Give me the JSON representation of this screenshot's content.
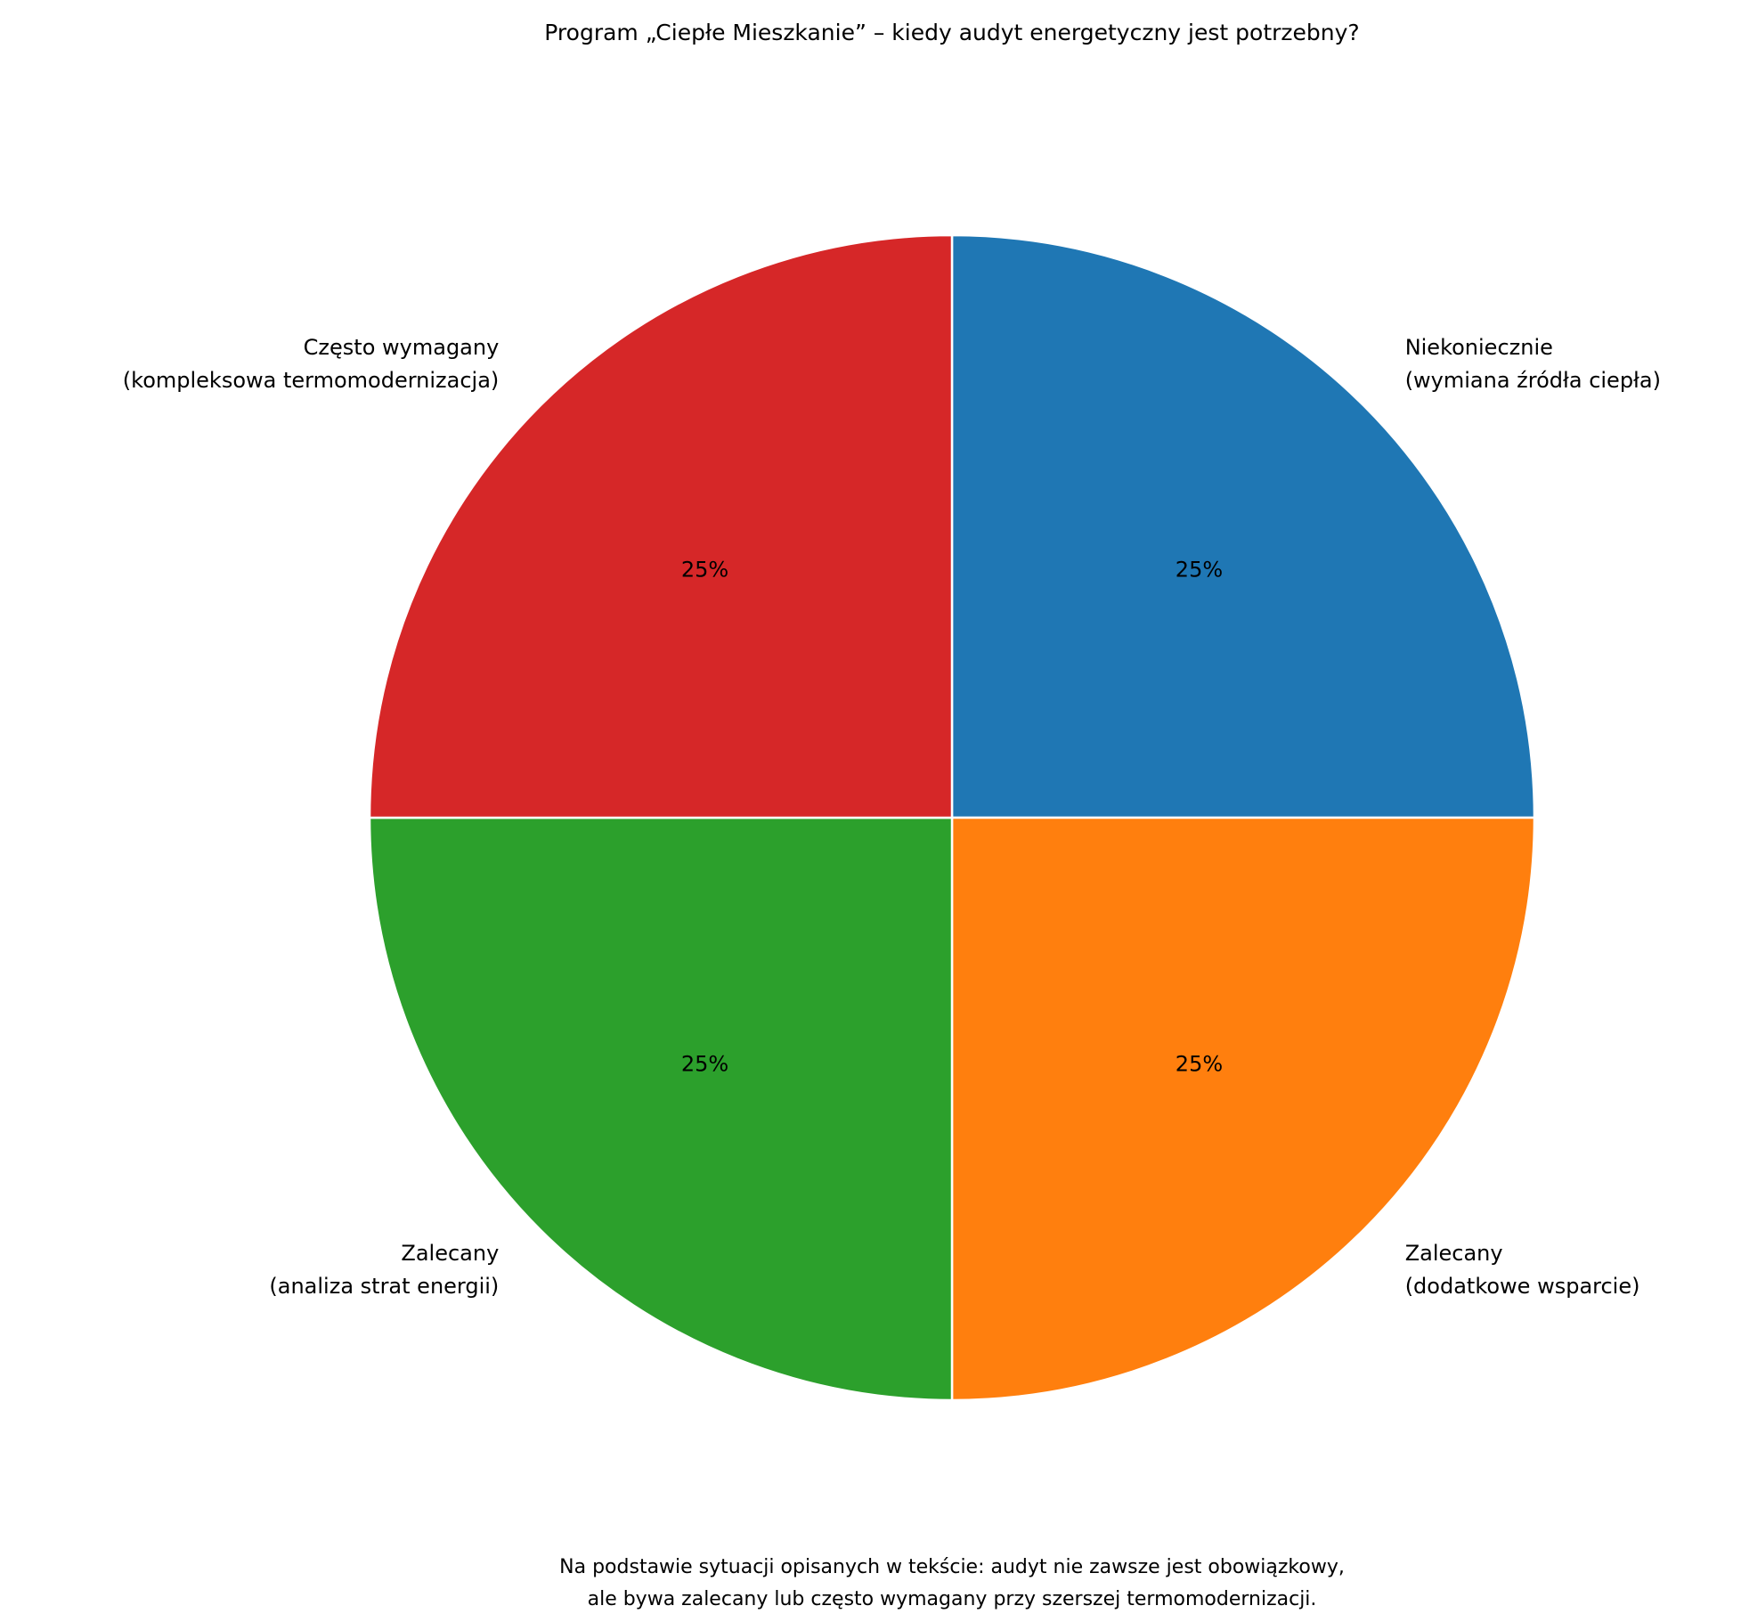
{
  "chart_data": {
    "type": "pie",
    "title": "Program „Ciepłe Mieszkanie” – kiedy audyt energetyczny jest potrzebny?",
    "categories": [
      "Niekoniecznie\n(wymiana źródła ciepła)",
      "Zalecany\n(dodatkowe wsparcie)",
      "Zalecany\n(analiza strat energii)",
      "Często wymagany\n(kompleksowa termomodernizacja)"
    ],
    "values": [
      25,
      25,
      25,
      25
    ],
    "value_labels": [
      "25%",
      "25%",
      "25%",
      "25%"
    ],
    "colors": [
      "#1f77b4",
      "#ff7f0e",
      "#2ca02c",
      "#d62728"
    ],
    "footnote": "Na podstawie sytuacji opisanych w tekście: audyt nie zawsze jest obowiązkowy,\nale bywa zalecany lub często wymagany przy szerszej termomodernizacji."
  }
}
